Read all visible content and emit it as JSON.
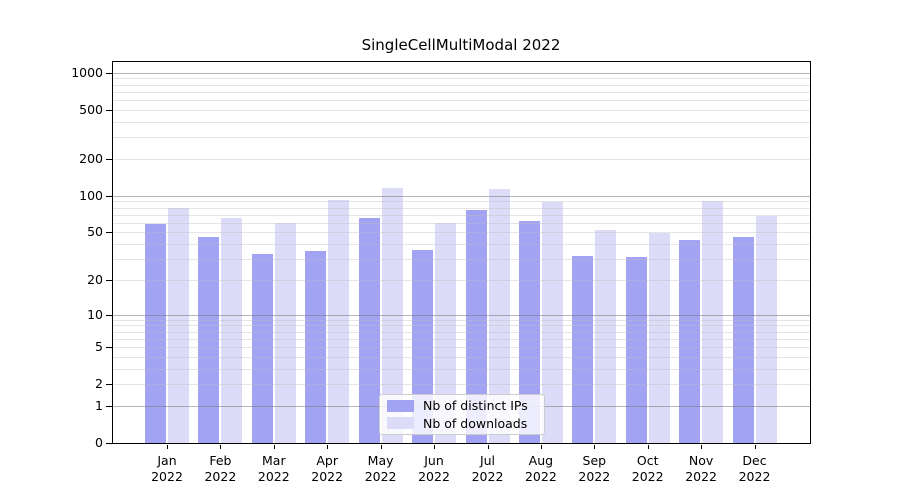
{
  "chart_data": {
    "type": "bar",
    "title": "SingleCellMultiModal 2022",
    "categories": [
      "Jan",
      "Feb",
      "Mar",
      "Apr",
      "May",
      "Jun",
      "Jul",
      "Aug",
      "Sep",
      "Oct",
      "Nov",
      "Dec"
    ],
    "year_label": "2022",
    "series": [
      {
        "name": "Nb of distinct IPs",
        "color": "#a3a3f4",
        "values": [
          58,
          46,
          33,
          35,
          66,
          36,
          77,
          62,
          32,
          31,
          43,
          46
        ]
      },
      {
        "name": "Nb of downloads",
        "color": "#dcdcf8",
        "values": [
          80,
          66,
          60,
          92,
          116,
          60,
          114,
          89,
          52,
          49,
          91,
          68
        ]
      }
    ],
    "y_ticks": [
      0,
      1,
      2,
      5,
      10,
      20,
      50,
      100,
      200,
      500,
      1000
    ],
    "y_scale": "log1p",
    "ylim": [
      0,
      1220
    ],
    "grid": "horizontal major+minor, drawn over bars",
    "legend_position": "lower center",
    "xlabel": "",
    "ylabel": ""
  },
  "colors": {
    "background": "#ffffff",
    "axis": "#000000",
    "major_grid": "#787878",
    "minor_grid": "#bebebe",
    "legend_border": "#cccccc",
    "text": "#000000"
  }
}
